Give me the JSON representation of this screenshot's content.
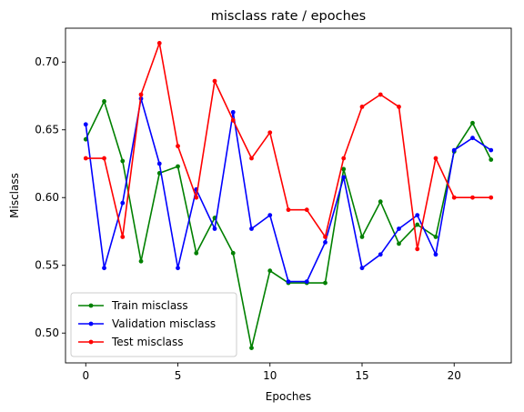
{
  "chart_data": {
    "type": "line",
    "title": "misclass rate / epoches",
    "xlabel": "Epoches",
    "ylabel": "Misclass",
    "xlim": [
      -1.1,
      23.1
    ],
    "ylim": [
      0.478,
      0.725
    ],
    "x_ticks": [
      0,
      5,
      10,
      15,
      20
    ],
    "y_ticks": [
      0.5,
      0.55,
      0.6,
      0.65,
      0.7
    ],
    "y_tick_labels": [
      "0.50",
      "0.55",
      "0.60",
      "0.65",
      "0.70"
    ],
    "grid": false,
    "legend_position": "lower-left",
    "x": [
      0,
      1,
      2,
      3,
      4,
      5,
      6,
      7,
      8,
      9,
      10,
      11,
      12,
      13,
      14,
      15,
      16,
      17,
      18,
      19,
      20,
      21,
      22
    ],
    "series": [
      {
        "name": "Train misclass",
        "color": "#008000",
        "values": [
          0.643,
          0.671,
          0.627,
          0.553,
          0.618,
          0.623,
          0.559,
          0.585,
          0.559,
          0.489,
          0.546,
          0.537,
          0.537,
          0.537,
          0.621,
          0.571,
          0.597,
          0.566,
          0.58,
          0.571,
          0.634,
          0.655,
          0.628
        ]
      },
      {
        "name": "Validation misclass",
        "color": "#0000ff",
        "values": [
          0.654,
          0.548,
          0.596,
          0.673,
          0.625,
          0.548,
          0.606,
          0.577,
          0.663,
          0.577,
          0.587,
          0.538,
          0.538,
          0.567,
          0.615,
          0.548,
          0.558,
          0.577,
          0.587,
          0.558,
          0.635,
          0.644,
          0.635
        ]
      },
      {
        "name": "Test misclass",
        "color": "#ff0000",
        "values": [
          0.629,
          0.629,
          0.571,
          0.676,
          0.714,
          0.638,
          0.6,
          0.686,
          0.657,
          0.629,
          0.648,
          0.591,
          0.591,
          0.571,
          0.629,
          0.667,
          0.676,
          0.667,
          0.562,
          0.629,
          0.6,
          0.6,
          0.6
        ]
      }
    ]
  }
}
